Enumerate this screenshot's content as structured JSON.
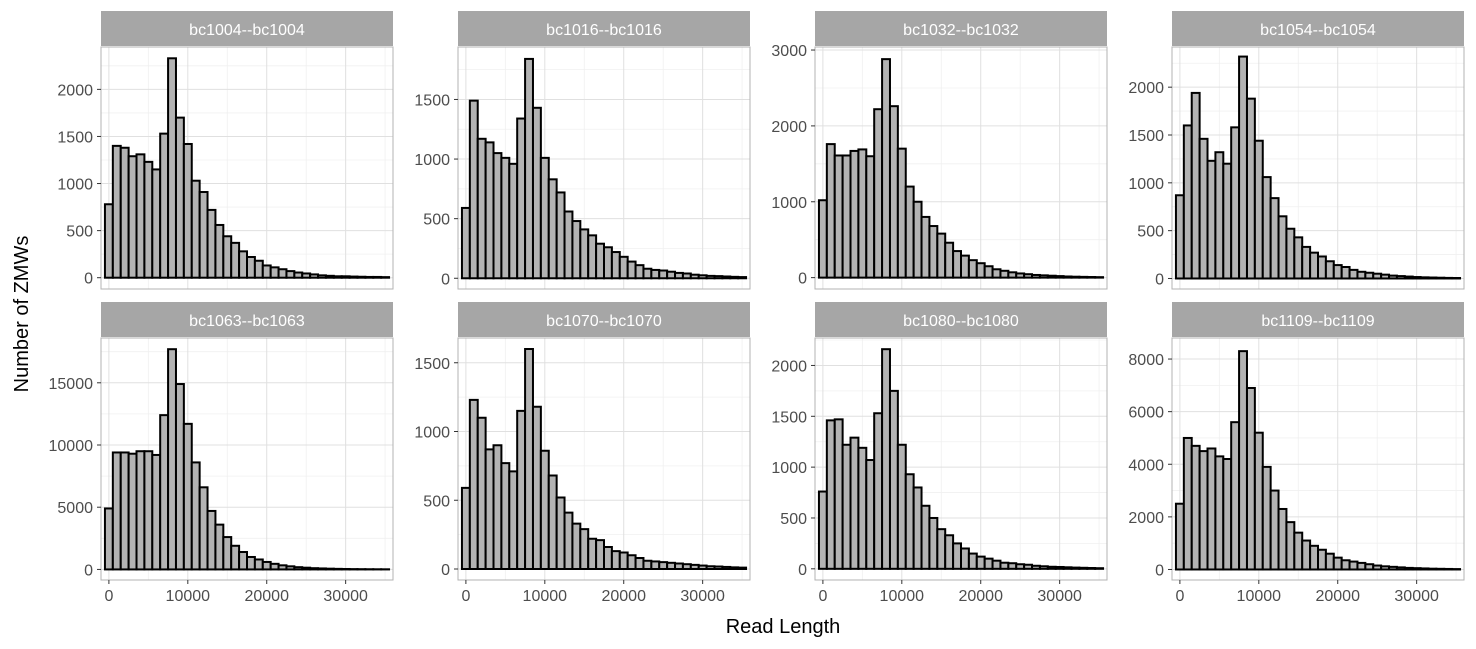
{
  "chart_data": {
    "type": "bar",
    "xlabel": "Read Length",
    "ylabel": "Number of ZMWs",
    "xlim": [
      -1000,
      36000
    ],
    "x_ticks": [
      0,
      10000,
      20000,
      30000
    ],
    "x_tick_labels": [
      "0",
      "10000",
      "20000",
      "30000"
    ],
    "bin_width": 1000,
    "bin_centers": [
      0,
      1000,
      2000,
      3000,
      4000,
      5000,
      6000,
      7000,
      8000,
      9000,
      10000,
      11000,
      12000,
      13000,
      14000,
      15000,
      16000,
      17000,
      18000,
      19000,
      20000,
      21000,
      22000,
      23000,
      24000,
      25000,
      26000,
      27000,
      28000,
      29000,
      30000,
      31000,
      32000,
      33000,
      34000,
      35000
    ],
    "grid": true,
    "colors": {
      "bar_fill": "#b3b3b3",
      "bar_stroke": "#000000",
      "strip_fill": "#a6a6a6",
      "strip_text": "#ffffff",
      "grid": "#e0e0e0",
      "panel_border": "#b3b3b3"
    },
    "facets": [
      {
        "title": "bc1004--bc1004",
        "ylim": [
          -120,
          2450
        ],
        "y_ticks": [
          0,
          500,
          1000,
          1500,
          2000
        ],
        "y_tick_labels": [
          "0",
          "500",
          "1000",
          "1500",
          "2000"
        ],
        "values": [
          780,
          1400,
          1380,
          1290,
          1310,
          1230,
          1150,
          1530,
          2330,
          1700,
          1420,
          1030,
          910,
          720,
          560,
          440,
          370,
          280,
          220,
          180,
          130,
          110,
          90,
          70,
          55,
          45,
          35,
          25,
          20,
          15,
          15,
          12,
          10,
          8,
          8,
          6
        ]
      },
      {
        "title": "bc1016--bc1016",
        "ylim": [
          -90,
          1940
        ],
        "y_ticks": [
          0,
          500,
          1000,
          1500
        ],
        "y_tick_labels": [
          "0",
          "500",
          "1000",
          "1500"
        ],
        "values": [
          590,
          1490,
          1170,
          1140,
          1050,
          1010,
          960,
          1340,
          1840,
          1430,
          1010,
          830,
          720,
          560,
          480,
          410,
          360,
          290,
          260,
          220,
          180,
          140,
          110,
          80,
          70,
          65,
          55,
          45,
          40,
          30,
          25,
          20,
          18,
          15,
          12,
          10
        ]
      },
      {
        "title": "bc1032--bc1032",
        "ylim": [
          -150,
          3040
        ],
        "y_ticks": [
          0,
          1000,
          2000,
          3000
        ],
        "y_tick_labels": [
          "0",
          "1000",
          "2000",
          "3000"
        ],
        "values": [
          1020,
          1760,
          1610,
          1610,
          1670,
          1690,
          1600,
          2220,
          2880,
          2260,
          1700,
          1200,
          1000,
          800,
          680,
          580,
          460,
          350,
          290,
          230,
          190,
          150,
          110,
          90,
          70,
          55,
          45,
          35,
          30,
          25,
          20,
          15,
          12,
          10,
          8,
          6
        ]
      },
      {
        "title": "bc1054--bc1054",
        "ylim": [
          -110,
          2420
        ],
        "y_ticks": [
          0,
          500,
          1000,
          1500,
          2000
        ],
        "y_tick_labels": [
          "0",
          "500",
          "1000",
          "1500",
          "2000"
        ],
        "values": [
          870,
          1600,
          1940,
          1460,
          1230,
          1320,
          1200,
          1580,
          2320,
          1880,
          1440,
          1060,
          840,
          650,
          520,
          430,
          330,
          270,
          230,
          180,
          140,
          120,
          90,
          70,
          60,
          50,
          40,
          30,
          25,
          20,
          15,
          12,
          10,
          8,
          6,
          5
        ]
      },
      {
        "title": "bc1063--bc1063",
        "ylim": [
          -850,
          18600
        ],
        "y_ticks": [
          0,
          5000,
          10000,
          15000
        ],
        "y_tick_labels": [
          "0",
          "5000",
          "10000",
          "15000"
        ],
        "values": [
          4900,
          9400,
          9400,
          9300,
          9500,
          9500,
          9200,
          12400,
          17700,
          14900,
          11700,
          8600,
          6600,
          4700,
          3600,
          2600,
          1900,
          1400,
          1000,
          800,
          600,
          450,
          330,
          250,
          180,
          140,
          100,
          80,
          60,
          45,
          35,
          25,
          20,
          15,
          12,
          10
        ]
      },
      {
        "title": "bc1070--bc1070",
        "ylim": [
          -80,
          1680
        ],
        "y_ticks": [
          0,
          500,
          1000,
          1500
        ],
        "y_tick_labels": [
          "0",
          "500",
          "1000",
          "1500"
        ],
        "values": [
          590,
          1230,
          1100,
          870,
          900,
          770,
          710,
          1150,
          1600,
          1180,
          860,
          680,
          520,
          410,
          330,
          290,
          220,
          210,
          160,
          130,
          120,
          100,
          80,
          60,
          55,
          50,
          45,
          40,
          35,
          30,
          25,
          20,
          18,
          15,
          12,
          10
        ]
      },
      {
        "title": "bc1080--bc1080",
        "ylim": [
          -110,
          2270
        ],
        "y_ticks": [
          0,
          500,
          1000,
          1500,
          2000
        ],
        "y_tick_labels": [
          "0",
          "500",
          "1000",
          "1500",
          "2000"
        ],
        "values": [
          760,
          1460,
          1470,
          1220,
          1290,
          1190,
          1070,
          1530,
          2160,
          1750,
          1220,
          930,
          800,
          620,
          500,
          390,
          330,
          250,
          200,
          150,
          120,
          100,
          80,
          60,
          55,
          45,
          40,
          30,
          25,
          20,
          18,
          15,
          12,
          10,
          8,
          6
        ]
      },
      {
        "title": "bc1109--bc1109",
        "ylim": [
          -400,
          8800
        ],
        "y_ticks": [
          0,
          2000,
          4000,
          6000,
          8000
        ],
        "y_tick_labels": [
          "0",
          "2000",
          "4000",
          "6000",
          "8000"
        ],
        "values": [
          2500,
          5000,
          4700,
          4500,
          4600,
          4300,
          4200,
          5600,
          8300,
          6900,
          5200,
          3900,
          3000,
          2300,
          1800,
          1400,
          1100,
          900,
          750,
          600,
          450,
          350,
          300,
          250,
          200,
          150,
          120,
          100,
          80,
          60,
          50,
          40,
          30,
          25,
          20,
          15
        ]
      }
    ]
  }
}
